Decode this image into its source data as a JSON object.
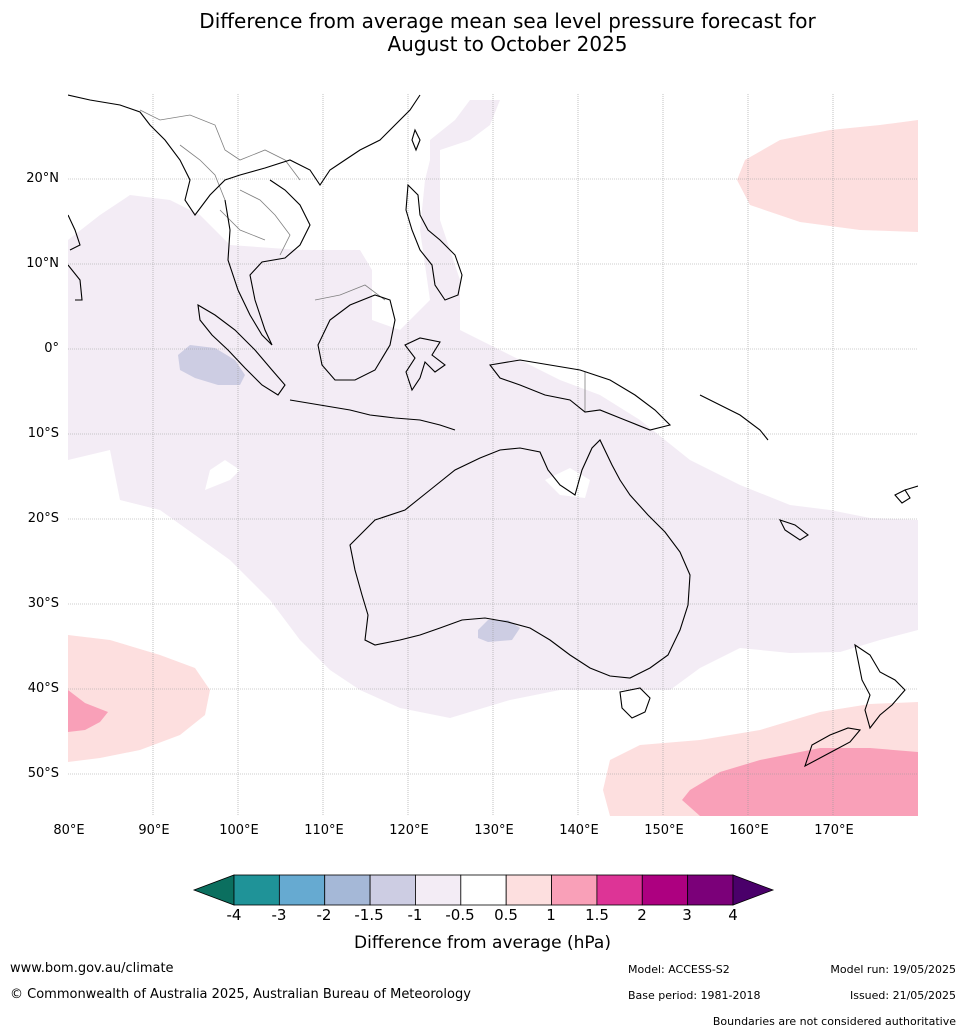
{
  "title": {
    "line1": "Difference from average mean sea level pressure forecast for",
    "line2": "August to October 2025"
  },
  "map": {
    "latitude_labels": [
      "20°N",
      "10°N",
      "0°",
      "10°S",
      "20°S",
      "30°S",
      "40°S",
      "50°S"
    ],
    "longitude_labels": [
      "80°E",
      "90°E",
      "100°E",
      "110°E",
      "120°E",
      "130°E",
      "140°E",
      "150°E",
      "160°E",
      "170°E"
    ],
    "coastline_color": "#000000",
    "border_color": "#808080",
    "gridline_color": "#999999"
  },
  "colorbar": {
    "ticks": [
      "-4",
      "-3",
      "-2",
      "-1.5",
      "-1",
      "-0.5",
      "0.5",
      "1",
      "1.5",
      "2",
      "3",
      "4"
    ],
    "colors": [
      "#0b6f5f",
      "#1f9398",
      "#66aad1",
      "#a5b8d7",
      "#cdcde3",
      "#f3ecf5",
      "#ffffff",
      "#fddfdf",
      "#f9a0b8",
      "#dd3496",
      "#ad0080",
      "#7b0079",
      "#4a006a"
    ],
    "label": "Difference from average (hPa)"
  },
  "footer": {
    "website": "www.bom.gov.au/climate",
    "copyright": "© Commonwealth of Australia 2025, Australian Bureau of Meteorology",
    "model": "Model: ACCESS-S2",
    "base_period": "Base period: 1981-2018",
    "model_run": "Model run: 19/05/2025",
    "issued": "Issued: 21/05/2025",
    "disclaimer": "Boundaries are not considered authoritative"
  }
}
